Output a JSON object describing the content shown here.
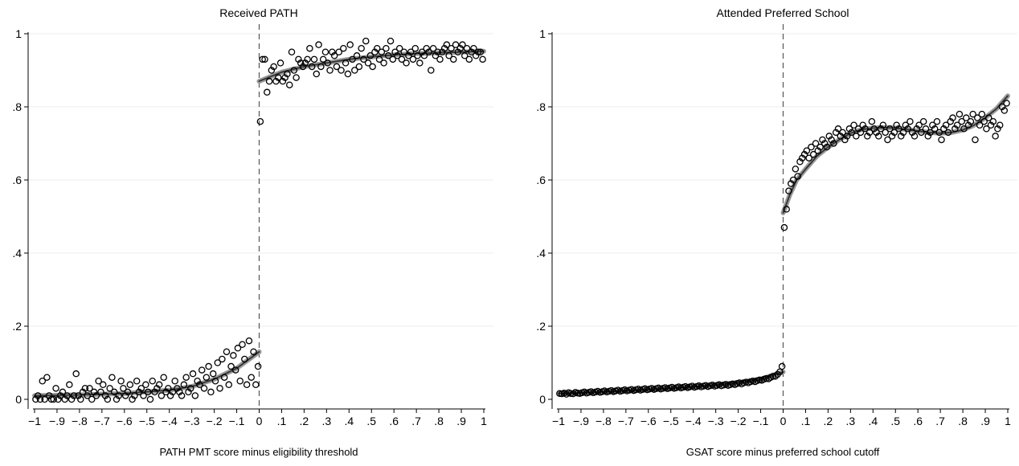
{
  "chart_data": [
    {
      "type": "scatter",
      "title": "Received PATH",
      "xlabel": "PATH PMT score minus eligibility threshold",
      "ylabel": "",
      "xlim": [
        -1,
        1
      ],
      "ylim": [
        0,
        1
      ],
      "xticks": [
        "-1",
        "-.9",
        "-.8",
        "-.7",
        "-.6",
        "-.5",
        "-.4",
        "-.3",
        "-.2",
        "-.1",
        "0",
        ".1",
        ".2",
        ".3",
        ".4",
        ".5",
        ".6",
        ".7",
        ".8",
        ".9",
        "1"
      ],
      "yticks": [
        "0",
        ".2",
        ".4",
        ".6",
        ".8",
        "1"
      ],
      "grid": true,
      "cutoff": 0,
      "bin_width": 0.01,
      "points_left": [
        0.0,
        0.01,
        0.0,
        0.05,
        0.0,
        0.06,
        0.01,
        0.0,
        0.0,
        0.03,
        0.0,
        0.01,
        0.02,
        0.0,
        0.01,
        0.04,
        0.0,
        0.01,
        0.07,
        0.01,
        0.0,
        0.02,
        0.03,
        0.01,
        0.03,
        0.0,
        0.02,
        0.01,
        0.05,
        0.02,
        0.04,
        0.01,
        0.0,
        0.03,
        0.06,
        0.02,
        0.0,
        0.01,
        0.05,
        0.03,
        0.01,
        0.02,
        0.04,
        0.0,
        0.01,
        0.05,
        0.02,
        0.03,
        0.01,
        0.04,
        0.02,
        0.0,
        0.05,
        0.02,
        0.03,
        0.04,
        0.01,
        0.06,
        0.02,
        0.03,
        0.01,
        0.02,
        0.05,
        0.03,
        0.02,
        0.01,
        0.04,
        0.06,
        0.02,
        0.03,
        0.07,
        0.01,
        0.05,
        0.04,
        0.08,
        0.03,
        0.06,
        0.09,
        0.02,
        0.07,
        0.05,
        0.1,
        0.03,
        0.11,
        0.06,
        0.13,
        0.04,
        0.09,
        0.12,
        0.08,
        0.14,
        0.05,
        0.15,
        0.11,
        0.04,
        0.16,
        0.06,
        0.13,
        0.04,
        0.09
      ],
      "points_right": [
        0.76,
        0.93,
        0.93,
        0.84,
        0.87,
        0.9,
        0.91,
        0.87,
        0.88,
        0.92,
        0.87,
        0.88,
        0.89,
        0.86,
        0.95,
        0.9,
        0.88,
        0.93,
        0.92,
        0.91,
        0.92,
        0.93,
        0.96,
        0.91,
        0.93,
        0.89,
        0.97,
        0.91,
        0.93,
        0.95,
        0.92,
        0.9,
        0.95,
        0.94,
        0.91,
        0.95,
        0.9,
        0.96,
        0.92,
        0.89,
        0.97,
        0.93,
        0.9,
        0.94,
        0.91,
        0.96,
        0.93,
        0.98,
        0.92,
        0.94,
        0.91,
        0.95,
        0.96,
        0.93,
        0.95,
        0.92,
        0.96,
        0.94,
        0.98,
        0.93,
        0.95,
        0.94,
        0.96,
        0.93,
        0.95,
        0.92,
        0.94,
        0.95,
        0.93,
        0.96,
        0.94,
        0.92,
        0.95,
        0.94,
        0.96,
        0.95,
        0.9,
        0.96,
        0.94,
        0.95,
        0.93,
        0.95,
        0.96,
        0.97,
        0.94,
        0.96,
        0.93,
        0.97,
        0.95,
        0.96,
        0.97,
        0.94,
        0.96,
        0.93,
        0.95,
        0.96,
        0.94,
        0.95,
        0.95,
        0.93
      ],
      "fit_left": [
        [
          -1,
          0.01
        ],
        [
          -0.8,
          0.012
        ],
        [
          -0.6,
          0.016
        ],
        [
          -0.4,
          0.025
        ],
        [
          -0.3,
          0.035
        ],
        [
          -0.2,
          0.055
        ],
        [
          -0.1,
          0.085
        ],
        [
          0,
          0.13
        ]
      ],
      "fit_right": [
        [
          0,
          0.87
        ],
        [
          0.1,
          0.895
        ],
        [
          0.2,
          0.91
        ],
        [
          0.3,
          0.92
        ],
        [
          0.4,
          0.93
        ],
        [
          0.5,
          0.937
        ],
        [
          0.6,
          0.942
        ],
        [
          0.7,
          0.946
        ],
        [
          0.8,
          0.948
        ],
        [
          0.9,
          0.95
        ],
        [
          1,
          0.952
        ]
      ]
    },
    {
      "type": "scatter",
      "title": "Attended Preferred School",
      "xlabel": "GSAT score minus preferred school cutoff",
      "ylabel": "",
      "xlim": [
        -1,
        1
      ],
      "ylim": [
        0,
        1
      ],
      "xticks": [
        "-1",
        "-.9",
        "-.8",
        "-.7",
        "-.6",
        "-.5",
        "-.4",
        "-.3",
        "-.2",
        "-.1",
        "0",
        ".1",
        ".2",
        ".3",
        ".4",
        ".5",
        ".6",
        ".7",
        ".8",
        ".9",
        "1"
      ],
      "yticks": [
        "0",
        ".2",
        ".4",
        ".6",
        ".8",
        "1"
      ],
      "grid": true,
      "cutoff": 0,
      "bin_width": 0.01,
      "points_left": [
        0.016,
        0.015,
        0.017,
        0.014,
        0.018,
        0.016,
        0.015,
        0.019,
        0.017,
        0.016,
        0.018,
        0.02,
        0.017,
        0.019,
        0.021,
        0.018,
        0.02,
        0.022,
        0.019,
        0.021,
        0.023,
        0.02,
        0.022,
        0.024,
        0.021,
        0.023,
        0.025,
        0.022,
        0.024,
        0.026,
        0.023,
        0.025,
        0.027,
        0.024,
        0.026,
        0.028,
        0.025,
        0.027,
        0.029,
        0.026,
        0.028,
        0.03,
        0.027,
        0.029,
        0.031,
        0.028,
        0.03,
        0.032,
        0.029,
        0.031,
        0.033,
        0.03,
        0.032,
        0.034,
        0.031,
        0.033,
        0.035,
        0.032,
        0.034,
        0.036,
        0.033,
        0.035,
        0.037,
        0.034,
        0.036,
        0.038,
        0.035,
        0.037,
        0.039,
        0.036,
        0.038,
        0.04,
        0.037,
        0.039,
        0.041,
        0.038,
        0.04,
        0.042,
        0.04,
        0.043,
        0.045,
        0.042,
        0.045,
        0.047,
        0.045,
        0.048,
        0.05,
        0.048,
        0.051,
        0.053,
        0.052,
        0.055,
        0.057,
        0.056,
        0.06,
        0.063,
        0.063,
        0.068,
        0.075,
        0.09
      ],
      "points_right": [
        0.47,
        0.52,
        0.57,
        0.59,
        0.6,
        0.63,
        0.61,
        0.65,
        0.66,
        0.67,
        0.68,
        0.66,
        0.69,
        0.67,
        0.7,
        0.68,
        0.69,
        0.71,
        0.7,
        0.69,
        0.72,
        0.71,
        0.7,
        0.73,
        0.74,
        0.72,
        0.73,
        0.71,
        0.72,
        0.74,
        0.73,
        0.75,
        0.72,
        0.74,
        0.73,
        0.75,
        0.74,
        0.72,
        0.73,
        0.76,
        0.74,
        0.73,
        0.72,
        0.74,
        0.75,
        0.73,
        0.71,
        0.74,
        0.72,
        0.73,
        0.75,
        0.74,
        0.72,
        0.73,
        0.75,
        0.74,
        0.76,
        0.73,
        0.72,
        0.74,
        0.75,
        0.73,
        0.76,
        0.74,
        0.72,
        0.73,
        0.75,
        0.74,
        0.76,
        0.73,
        0.71,
        0.74,
        0.75,
        0.73,
        0.76,
        0.77,
        0.74,
        0.75,
        0.78,
        0.76,
        0.74,
        0.77,
        0.75,
        0.76,
        0.78,
        0.71,
        0.77,
        0.75,
        0.78,
        0.76,
        0.74,
        0.77,
        0.75,
        0.76,
        0.72,
        0.74,
        0.75,
        0.8,
        0.79,
        0.81
      ],
      "fit_left": [
        [
          -1,
          0.016
        ],
        [
          -0.8,
          0.02
        ],
        [
          -0.6,
          0.026
        ],
        [
          -0.4,
          0.034
        ],
        [
          -0.2,
          0.046
        ],
        [
          -0.1,
          0.055
        ],
        [
          0,
          0.075
        ]
      ],
      "fit_right": [
        [
          0,
          0.51
        ],
        [
          0.03,
          0.56
        ],
        [
          0.06,
          0.6
        ],
        [
          0.1,
          0.63
        ],
        [
          0.15,
          0.665
        ],
        [
          0.2,
          0.69
        ],
        [
          0.25,
          0.71
        ],
        [
          0.3,
          0.728
        ],
        [
          0.35,
          0.738
        ],
        [
          0.4,
          0.742
        ],
        [
          0.45,
          0.743
        ],
        [
          0.5,
          0.742
        ],
        [
          0.55,
          0.738
        ],
        [
          0.6,
          0.734
        ],
        [
          0.65,
          0.73
        ],
        [
          0.7,
          0.728
        ],
        [
          0.75,
          0.73
        ],
        [
          0.8,
          0.737
        ],
        [
          0.85,
          0.75
        ],
        [
          0.9,
          0.77
        ],
        [
          0.95,
          0.795
        ],
        [
          1,
          0.83
        ]
      ]
    }
  ]
}
